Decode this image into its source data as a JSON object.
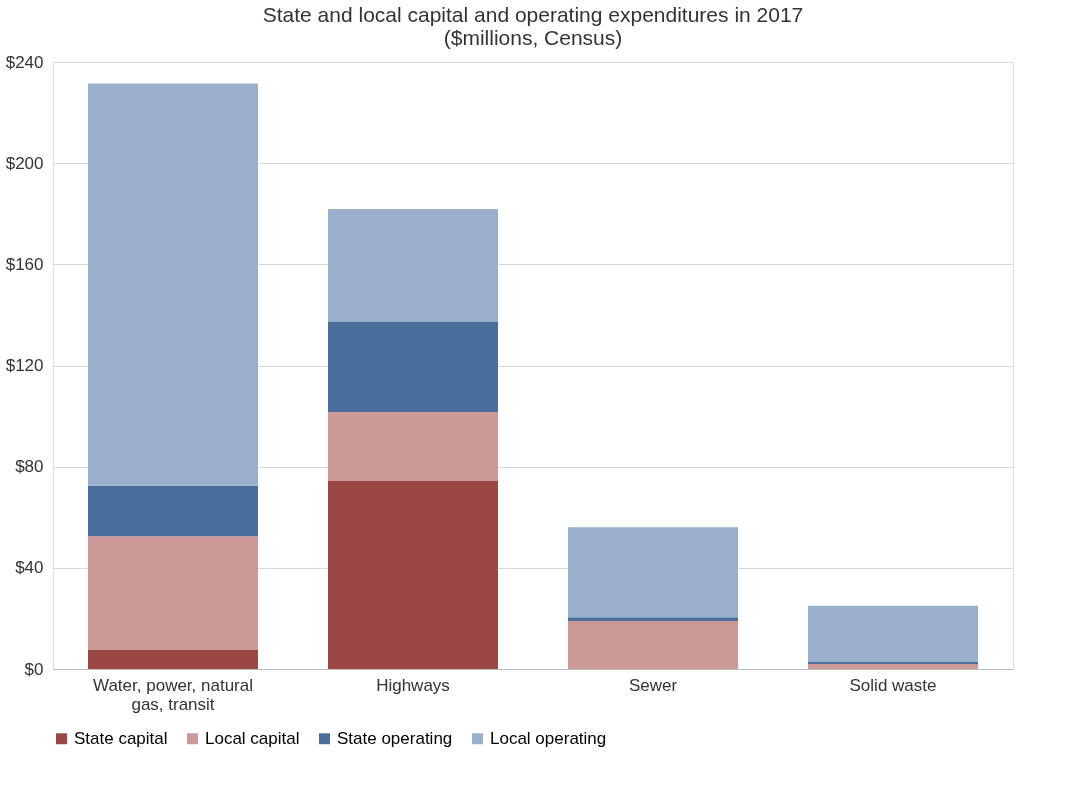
{
  "chart_data": {
    "type": "bar",
    "title": "State and local capital and operating expenditures in 2017",
    "subtitle": "($millions, Census)",
    "categories": [
      "Water, power, natural gas, transit",
      "Highways",
      "Sewer",
      "Solid waste"
    ],
    "stacked": true,
    "series": [
      {
        "name": "State capital",
        "color": "#9b4746",
        "values": [
          7.5,
          74.3,
          0,
          0
        ]
      },
      {
        "name": "Local capital",
        "color": "#cd9a99",
        "values": [
          45,
          27.3,
          19,
          2
        ]
      },
      {
        "name": "State operating",
        "color": "#4a6f9d",
        "values": [
          20,
          35.6,
          1.5,
          1
        ]
      },
      {
        "name": "Local operating",
        "color": "#9aafca",
        "values": [
          159,
          44.7,
          35.5,
          22
        ]
      }
    ],
    "ylim": [
      0,
      240
    ],
    "yticks": [
      {
        "value": 0,
        "label": "$0"
      },
      {
        "value": 40,
        "label": "$40"
      },
      {
        "value": 80,
        "label": "$80"
      },
      {
        "value": 120,
        "label": "$120"
      },
      {
        "value": 160,
        "label": "$160"
      },
      {
        "value": 200,
        "label": "$200"
      },
      {
        "value": 240,
        "label": "$240"
      }
    ],
    "grid": "y",
    "legend": "bottom"
  }
}
